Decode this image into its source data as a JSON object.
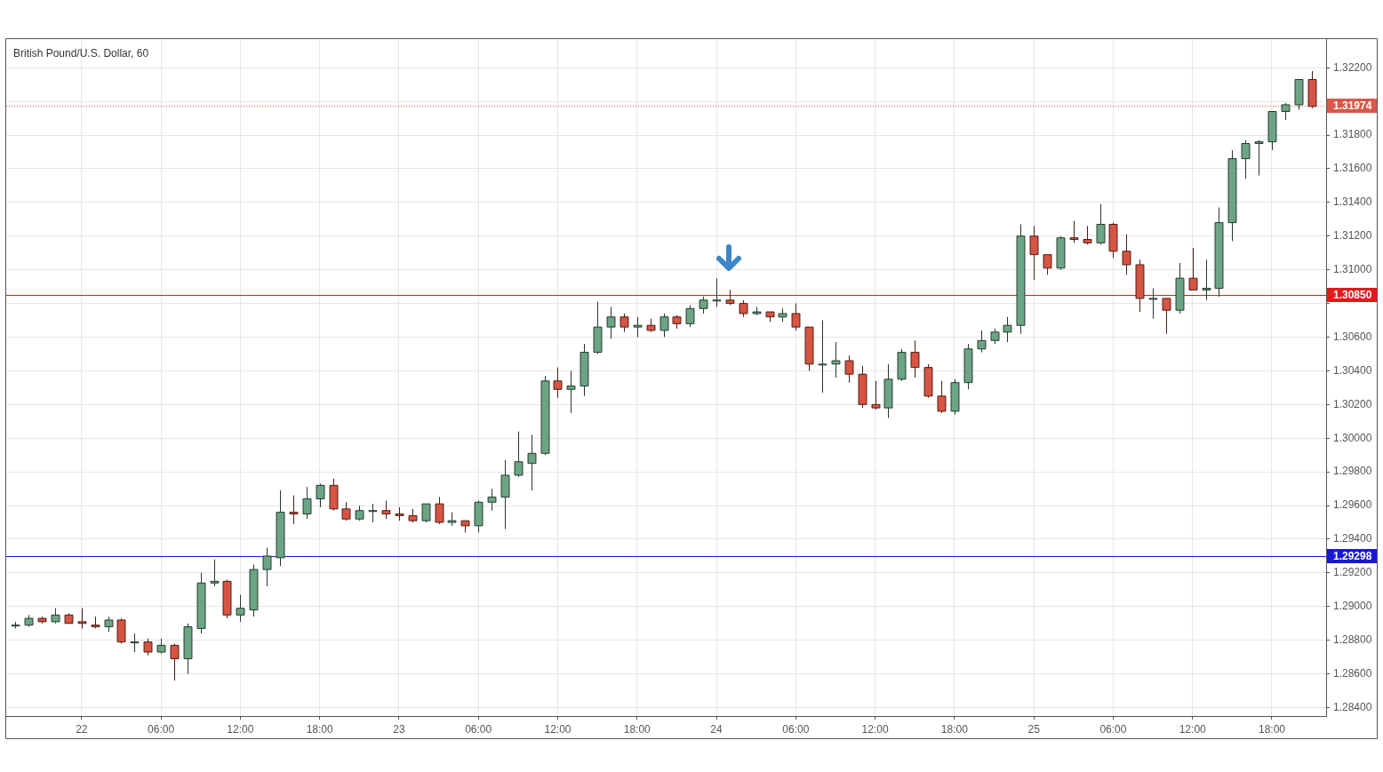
{
  "chart_data": {
    "type": "candlestick",
    "title": "British Pound/U.S. Dollar, 60",
    "x": [
      "--01-21T19:00",
      "--01-21T20:00",
      "--01-21T21:00",
      "--01-21T22:00",
      "--01-21T23:00",
      "--01-22T00:00",
      "--01-22T01:00",
      "--01-22T02:00",
      "--01-22T03:00",
      "--01-22T04:00",
      "--01-22T05:00",
      "--01-22T06:00",
      "--01-22T07:00",
      "--01-22T08:00",
      "--01-22T09:00",
      "--01-22T10:00",
      "--01-22T11:00",
      "--01-22T12:00",
      "--01-22T13:00",
      "--01-22T14:00",
      "--01-22T15:00",
      "--01-22T16:00",
      "--01-22T17:00",
      "--01-22T18:00",
      "--01-22T19:00",
      "--01-22T20:00",
      "--01-22T21:00",
      "--01-22T22:00",
      "--01-22T23:00",
      "--01-23T00:00",
      "--01-23T01:00",
      "--01-23T02:00",
      "--01-23T03:00",
      "--01-23T04:00",
      "--01-23T05:00",
      "--01-23T06:00",
      "--01-23T07:00",
      "--01-23T08:00",
      "--01-23T09:00",
      "--01-23T10:00",
      "--01-23T11:00",
      "--01-23T12:00",
      "--01-23T13:00",
      "--01-23T14:00",
      "--01-23T15:00",
      "--01-23T16:00",
      "--01-23T17:00",
      "--01-23T18:00",
      "--01-23T19:00",
      "--01-23T20:00",
      "--01-23T21:00",
      "--01-23T22:00",
      "--01-23T23:00",
      "--01-24T00:00",
      "--01-24T01:00",
      "--01-24T02:00",
      "--01-24T03:00",
      "--01-24T04:00",
      "--01-24T05:00",
      "--01-24T06:00",
      "--01-24T07:00",
      "--01-24T08:00",
      "--01-24T09:00",
      "--01-24T10:00",
      "--01-24T11:00",
      "--01-24T12:00",
      "--01-24T13:00",
      "--01-24T14:00",
      "--01-24T15:00",
      "--01-24T16:00",
      "--01-24T17:00",
      "--01-24T18:00",
      "--01-24T19:00",
      "--01-24T20:00",
      "--01-24T21:00",
      "--01-24T22:00",
      "--01-24T23:00",
      "--01-25T00:00",
      "--01-25T01:00",
      "--01-25T02:00",
      "--01-25T03:00",
      "--01-25T04:00",
      "--01-25T05:00",
      "--01-25T06:00",
      "--01-25T07:00",
      "--01-25T08:00",
      "--01-25T09:00",
      "--01-25T10:00",
      "--01-25T11:00",
      "--01-25T12:00",
      "--01-25T13:00",
      "--01-25T14:00",
      "--01-25T15:00",
      "--01-25T16:00",
      "--01-25T17:00",
      "--01-25T18:00",
      "--01-25T19:00",
      "--01-25T20:00",
      "--01-25T21:00"
    ],
    "ohlc": [
      [
        1.2889,
        1.2891,
        1.2887,
        1.2889
      ],
      [
        1.2889,
        1.2895,
        1.2888,
        1.2893
      ],
      [
        1.2893,
        1.2894,
        1.289,
        1.2891
      ],
      [
        1.2891,
        1.2899,
        1.289,
        1.2895
      ],
      [
        1.2895,
        1.2896,
        1.289,
        1.289
      ],
      [
        1.2891,
        1.2899,
        1.2887,
        1.289
      ],
      [
        1.2889,
        1.2894,
        1.2887,
        1.2888
      ],
      [
        1.2888,
        1.2894,
        1.2885,
        1.2892
      ],
      [
        1.2892,
        1.2893,
        1.2878,
        1.2879
      ],
      [
        1.2879,
        1.2884,
        1.2873,
        1.2879
      ],
      [
        1.2879,
        1.2881,
        1.2871,
        1.2873
      ],
      [
        1.2873,
        1.2881,
        1.2872,
        1.2877
      ],
      [
        1.2877,
        1.2878,
        1.2856,
        1.2869
      ],
      [
        1.2869,
        1.289,
        1.286,
        1.2888
      ],
      [
        1.2887,
        1.292,
        1.2884,
        1.2914
      ],
      [
        1.2914,
        1.2928,
        1.2912,
        1.2915
      ],
      [
        1.2915,
        1.2916,
        1.2893,
        1.2895
      ],
      [
        1.2895,
        1.2907,
        1.2891,
        1.2899
      ],
      [
        1.2898,
        1.2925,
        1.2894,
        1.2922
      ],
      [
        1.2922,
        1.2935,
        1.2912,
        1.293
      ],
      [
        1.2929,
        1.2969,
        1.2924,
        1.2956
      ],
      [
        1.2956,
        1.2966,
        1.2949,
        1.2955
      ],
      [
        1.2955,
        1.2971,
        1.2952,
        1.2964
      ],
      [
        1.2964,
        1.2973,
        1.2959,
        1.2972
      ],
      [
        1.2972,
        1.2976,
        1.2957,
        1.2958
      ],
      [
        1.2958,
        1.2962,
        1.2951,
        1.2952
      ],
      [
        1.2952,
        1.296,
        1.2951,
        1.2957
      ],
      [
        1.2957,
        1.2961,
        1.295,
        1.2957
      ],
      [
        1.2957,
        1.2963,
        1.2952,
        1.2955
      ],
      [
        1.2955,
        1.2959,
        1.2951,
        1.2954
      ],
      [
        1.2954,
        1.2958,
        1.295,
        1.2951
      ],
      [
        1.2951,
        1.2961,
        1.295,
        1.2961
      ],
      [
        1.2961,
        1.2965,
        1.2949,
        1.295
      ],
      [
        1.295,
        1.2956,
        1.2948,
        1.2951
      ],
      [
        1.2951,
        1.2951,
        1.2944,
        1.2948
      ],
      [
        1.2948,
        1.2963,
        1.2944,
        1.2962
      ],
      [
        1.2962,
        1.297,
        1.2957,
        1.2965
      ],
      [
        1.2965,
        1.2987,
        1.2946,
        1.2978
      ],
      [
        1.2978,
        1.3004,
        1.2977,
        1.2986
      ],
      [
        1.2985,
        1.3002,
        1.2969,
        1.2991
      ],
      [
        1.2991,
        1.3037,
        1.299,
        1.3034
      ],
      [
        1.3034,
        1.3042,
        1.3024,
        1.3029
      ],
      [
        1.3029,
        1.304,
        1.3015,
        1.3031
      ],
      [
        1.3031,
        1.3056,
        1.3025,
        1.3051
      ],
      [
        1.3051,
        1.3081,
        1.305,
        1.3066
      ],
      [
        1.3066,
        1.3078,
        1.3059,
        1.3072
      ],
      [
        1.3072,
        1.3074,
        1.3063,
        1.3066
      ],
      [
        1.3066,
        1.3072,
        1.306,
        1.3067
      ],
      [
        1.3067,
        1.3071,
        1.3063,
        1.3064
      ],
      [
        1.3064,
        1.3074,
        1.306,
        1.3072
      ],
      [
        1.3072,
        1.3073,
        1.3065,
        1.3068
      ],
      [
        1.3068,
        1.3079,
        1.3066,
        1.3077
      ],
      [
        1.3077,
        1.3084,
        1.3074,
        1.3082
      ],
      [
        1.3082,
        1.3095,
        1.3078,
        1.3082
      ],
      [
        1.3082,
        1.3088,
        1.3079,
        1.308
      ],
      [
        1.308,
        1.3082,
        1.3072,
        1.3074
      ],
      [
        1.3074,
        1.3078,
        1.3073,
        1.3075
      ],
      [
        1.3075,
        1.3075,
        1.3069,
        1.3072
      ],
      [
        1.3072,
        1.3077,
        1.3069,
        1.3074
      ],
      [
        1.3074,
        1.308,
        1.3064,
        1.3066
      ],
      [
        1.3066,
        1.3066,
        1.304,
        1.3044
      ],
      [
        1.3044,
        1.307,
        1.3027,
        1.3044
      ],
      [
        1.3044,
        1.3057,
        1.3036,
        1.3046
      ],
      [
        1.3046,
        1.3049,
        1.3033,
        1.3038
      ],
      [
        1.3038,
        1.3043,
        1.3018,
        1.302
      ],
      [
        1.302,
        1.3034,
        1.3017,
        1.3018
      ],
      [
        1.3018,
        1.3044,
        1.3012,
        1.3035
      ],
      [
        1.3035,
        1.3053,
        1.3034,
        1.3051
      ],
      [
        1.3051,
        1.3058,
        1.3036,
        1.3042
      ],
      [
        1.3042,
        1.3044,
        1.3024,
        1.3025
      ],
      [
        1.3025,
        1.3034,
        1.3015,
        1.3016
      ],
      [
        1.3016,
        1.3035,
        1.3014,
        1.3033
      ],
      [
        1.3033,
        1.3056,
        1.3029,
        1.3053
      ],
      [
        1.3053,
        1.3064,
        1.3051,
        1.3058
      ],
      [
        1.3058,
        1.3065,
        1.3056,
        1.3063
      ],
      [
        1.3063,
        1.3072,
        1.3057,
        1.3067
      ],
      [
        1.3067,
        1.3127,
        1.3062,
        1.312
      ],
      [
        1.312,
        1.3126,
        1.3094,
        1.3109
      ],
      [
        1.3109,
        1.3109,
        1.3097,
        1.3101
      ],
      [
        1.3101,
        1.312,
        1.31,
        1.3119
      ],
      [
        1.3119,
        1.3129,
        1.3116,
        1.3118
      ],
      [
        1.3118,
        1.3126,
        1.3115,
        1.3116
      ],
      [
        1.3116,
        1.3139,
        1.3115,
        1.3127
      ],
      [
        1.3127,
        1.3128,
        1.3107,
        1.3111
      ],
      [
        1.3111,
        1.3121,
        1.3097,
        1.3103
      ],
      [
        1.3103,
        1.3106,
        1.3075,
        1.3083
      ],
      [
        1.3083,
        1.3089,
        1.3071,
        1.3083
      ],
      [
        1.3083,
        1.3083,
        1.3062,
        1.3076
      ],
      [
        1.3076,
        1.3104,
        1.3074,
        1.3095
      ],
      [
        1.3095,
        1.3113,
        1.3088,
        1.3088
      ],
      [
        1.3088,
        1.3106,
        1.3082,
        1.3089
      ],
      [
        1.3089,
        1.3137,
        1.3084,
        1.3128
      ],
      [
        1.3128,
        1.3171,
        1.3117,
        1.3166
      ],
      [
        1.3166,
        1.3177,
        1.3154,
        1.3175
      ],
      [
        1.3175,
        1.3177,
        1.3156,
        1.3176
      ],
      [
        1.3176,
        1.3194,
        1.3171,
        1.3194
      ],
      [
        1.3194,
        1.3199,
        1.3189,
        1.3198
      ],
      [
        1.3198,
        1.3213,
        1.3195,
        1.3213
      ],
      [
        1.3213,
        1.3218,
        1.3196,
        1.3197
      ]
    ],
    "colors": [
      "#6ba583",
      "#6ba583",
      "#d75442",
      "#6ba583",
      "#d75442",
      "#d75442",
      "#d75442",
      "#6ba583",
      "#d75442",
      "#6ba583",
      "#d75442",
      "#6ba583",
      "#d75442",
      "#6ba583",
      "#6ba583",
      "#6ba583",
      "#d75442",
      "#6ba583",
      "#6ba583",
      "#6ba583",
      "#6ba583",
      "#d75442",
      "#6ba583",
      "#6ba583",
      "#d75442",
      "#d75442",
      "#6ba583",
      "#6ba583",
      "#d75442",
      "#d75442",
      "#d75442",
      "#6ba583",
      "#d75442",
      "#6ba583",
      "#d75442",
      "#6ba583",
      "#6ba583",
      "#6ba583",
      "#6ba583",
      "#6ba583",
      "#6ba583",
      "#d75442",
      "#6ba583",
      "#6ba583",
      "#6ba583",
      "#6ba583",
      "#d75442",
      "#6ba583",
      "#d75442",
      "#6ba583",
      "#d75442",
      "#6ba583",
      "#6ba583",
      "#6ba583",
      "#d75442",
      "#d75442",
      "#6ba583",
      "#d75442",
      "#6ba583",
      "#d75442",
      "#d75442",
      "#6ba583",
      "#6ba583",
      "#d75442",
      "#d75442",
      "#d75442",
      "#6ba583",
      "#6ba583",
      "#d75442",
      "#d75442",
      "#d75442",
      "#6ba583",
      "#6ba583",
      "#6ba583",
      "#6ba583",
      "#6ba583",
      "#6ba583",
      "#d75442",
      "#d75442",
      "#6ba583",
      "#d75442",
      "#d75442",
      "#6ba583",
      "#d75442",
      "#d75442",
      "#d75442",
      "#6ba583",
      "#d75442",
      "#6ba583",
      "#d75442",
      "#6ba583",
      "#6ba583",
      "#6ba583",
      "#6ba583",
      "#6ba583",
      "#6ba583",
      "#6ba583",
      "#6ba583",
      "#d75442"
    ],
    "xlim": [
      "--01-21T18:18",
      "--01-25T22:06"
    ],
    "ylim": [
      1.2835,
      1.3237
    ],
    "xticks": [
      {
        "value": "--01-22T00:00",
        "label": "22"
      },
      {
        "value": "--01-22T06:00",
        "label": "06:00"
      },
      {
        "value": "--01-22T12:00",
        "label": "12:00"
      },
      {
        "value": "--01-22T18:00",
        "label": "18:00"
      },
      {
        "value": "--01-23T00:00",
        "label": "23"
      },
      {
        "value": "--01-23T06:00",
        "label": "06:00"
      },
      {
        "value": "--01-23T12:00",
        "label": "12:00"
      },
      {
        "value": "--01-23T18:00",
        "label": "18:00"
      },
      {
        "value": "--01-24T00:00",
        "label": "24"
      },
      {
        "value": "--01-24T06:00",
        "label": "06:00"
      },
      {
        "value": "--01-24T12:00",
        "label": "12:00"
      },
      {
        "value": "--01-24T18:00",
        "label": "18:00"
      },
      {
        "value": "--01-25T00:00",
        "label": "25"
      },
      {
        "value": "--01-25T06:00",
        "label": "06:00"
      },
      {
        "value": "--01-25T12:00",
        "label": "12:00"
      },
      {
        "value": "--01-25T18:00",
        "label": "18:00"
      }
    ],
    "yticks": [
      {
        "value": 1.284,
        "label": "1.28400"
      },
      {
        "value": 1.286,
        "label": "1.28600"
      },
      {
        "value": 1.288,
        "label": "1.28800"
      },
      {
        "value": 1.29,
        "label": "1.29000"
      },
      {
        "value": 1.292,
        "label": "1.29200"
      },
      {
        "value": 1.294,
        "label": "1.29400"
      },
      {
        "value": 1.296,
        "label": "1.29600"
      },
      {
        "value": 1.298,
        "label": "1.29800"
      },
      {
        "value": 1.3,
        "label": "1.30000"
      },
      {
        "value": 1.302,
        "label": "1.30200"
      },
      {
        "value": 1.304,
        "label": "1.30400"
      },
      {
        "value": 1.306,
        "label": "1.30600"
      },
      {
        "value": 1.308,
        "label": null
      },
      {
        "value": 1.31,
        "label": "1.31000"
      },
      {
        "value": 1.312,
        "label": "1.31200"
      },
      {
        "value": 1.314,
        "label": "1.31400"
      },
      {
        "value": 1.316,
        "label": "1.31600"
      },
      {
        "value": 1.318,
        "label": "1.31800"
      },
      {
        "value": 1.32,
        "label": null
      },
      {
        "value": 1.322,
        "label": "1.32200"
      }
    ],
    "grid": true,
    "ref_lines": [
      {
        "axis": "y",
        "value": 1.31974,
        "label": "1.31974",
        "color": "#d9574a",
        "line_style": "dotted"
      },
      {
        "axis": "y",
        "value": 1.3085,
        "label": "1.30850",
        "color": "#e01b1b"
      },
      {
        "axis": "y",
        "value": 1.29298,
        "label": "1.29298",
        "color": "#1818d8"
      }
    ]
  }
}
